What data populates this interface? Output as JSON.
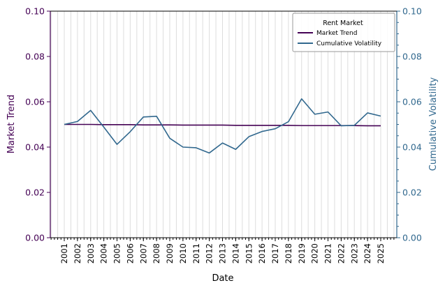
{
  "chart_data": {
    "type": "line",
    "xlabel": "Date",
    "x": [
      "2001",
      "2002",
      "2003",
      "2004",
      "2005",
      "2006",
      "2007",
      "2008",
      "2009",
      "2010",
      "2011",
      "2012",
      "2013",
      "2014",
      "2015",
      "2016",
      "2017",
      "2018",
      "2019",
      "2020",
      "2021",
      "2022",
      "2023",
      "2024",
      "2025"
    ],
    "y_left": {
      "label": "Market Trend",
      "ylim": [
        0,
        0.1
      ],
      "ticks": [
        "0.00",
        "0.02",
        "0.04",
        "0.06",
        "0.08",
        "0.10"
      ],
      "color": "#440154"
    },
    "y_right": {
      "label": "Cumulative Volatility",
      "ylim": [
        0,
        0.1
      ],
      "ticks": [
        "0.00",
        "0.02",
        "0.04",
        "0.06",
        "0.08",
        "0.10"
      ],
      "color": "#31688e"
    },
    "series": [
      {
        "name": "Market Trend",
        "axis": "left",
        "color": "#440154",
        "values": [
          0.05,
          0.05,
          0.05,
          0.0499,
          0.0499,
          0.0499,
          0.0498,
          0.0498,
          0.0498,
          0.0497,
          0.0497,
          0.0497,
          0.0497,
          0.0496,
          0.0496,
          0.0496,
          0.0496,
          0.0496,
          0.0495,
          0.0495,
          0.0495,
          0.0495,
          0.0495,
          0.0494,
          0.0494
        ]
      },
      {
        "name": "Cumulative Volatility",
        "axis": "right",
        "color": "#31688e",
        "values": [
          0.05,
          0.0513,
          0.0562,
          0.0488,
          0.0412,
          0.0468,
          0.0533,
          0.0536,
          0.0439,
          0.04,
          0.0397,
          0.0374,
          0.0418,
          0.039,
          0.0446,
          0.0469,
          0.0481,
          0.0512,
          0.0613,
          0.0545,
          0.0555,
          0.0494,
          0.0496,
          0.0551,
          0.0537
        ]
      }
    ],
    "legend": {
      "title": "Rent Market",
      "placement": "top-right"
    },
    "grid": "vertical"
  }
}
